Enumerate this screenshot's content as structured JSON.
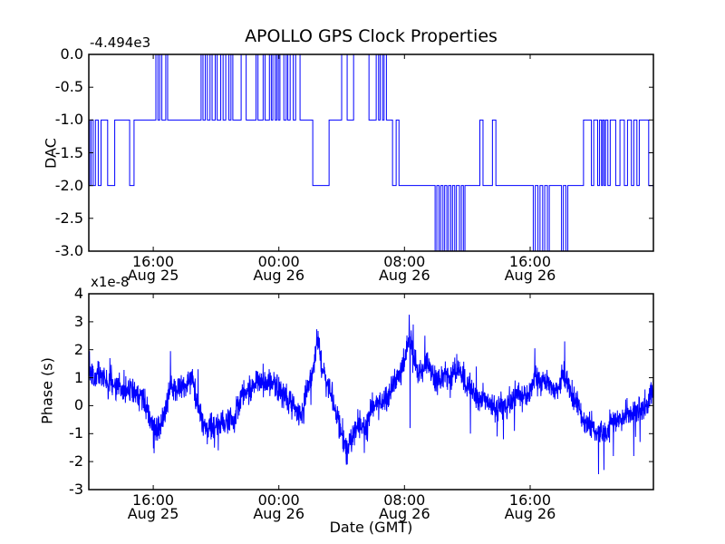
{
  "title": "APOLLO GPS Clock Properties",
  "colors": {
    "line": "#0000ff",
    "axis": "#000000",
    "background": "#ffffff",
    "text": "#000000"
  },
  "x_axis": {
    "label": "Date (GMT)",
    "range_hours": [
      11.9,
      47.85
    ],
    "ticks": [
      {
        "hour": 16,
        "time": "16:00",
        "date": "Aug 25"
      },
      {
        "hour": 24,
        "time": "00:00",
        "date": "Aug 26"
      },
      {
        "hour": 32,
        "time": "08:00",
        "date": "Aug 26"
      },
      {
        "hour": 40,
        "time": "16:00",
        "date": "Aug 26"
      }
    ]
  },
  "chart_data": [
    {
      "id": "dac",
      "type": "step",
      "ylabel": "DAC",
      "offset_label": "-4.494e3",
      "ylim": [
        -3,
        0
      ],
      "grid": false,
      "yticks": [
        {
          "value": 0.0,
          "label": "0.0"
        },
        {
          "value": -0.5,
          "label": "-0.5"
        },
        {
          "value": -1.0,
          "label": "-1.0"
        },
        {
          "value": -1.5,
          "label": "-1.5"
        },
        {
          "value": -2.0,
          "label": "-2.0"
        },
        {
          "value": -2.5,
          "label": "-2.5"
        },
        {
          "value": -3.0,
          "label": "-3.0"
        }
      ],
      "initial_value": -1,
      "transitions": [
        [
          11.95,
          -2
        ],
        [
          12.05,
          -1
        ],
        [
          12.18,
          -2
        ],
        [
          12.32,
          -1
        ],
        [
          12.5,
          -2
        ],
        [
          12.68,
          -1
        ],
        [
          13.1,
          -2
        ],
        [
          13.55,
          -1
        ],
        [
          14.5,
          -2
        ],
        [
          14.78,
          -1
        ],
        [
          16.17,
          0
        ],
        [
          16.3,
          -1
        ],
        [
          16.42,
          0
        ],
        [
          16.55,
          -1
        ],
        [
          16.8,
          0
        ],
        [
          16.92,
          -1
        ],
        [
          19.05,
          0
        ],
        [
          19.17,
          -1
        ],
        [
          19.32,
          0
        ],
        [
          19.45,
          -1
        ],
        [
          19.62,
          0
        ],
        [
          19.75,
          -1
        ],
        [
          19.95,
          0
        ],
        [
          20.07,
          -1
        ],
        [
          20.3,
          0
        ],
        [
          20.45,
          -1
        ],
        [
          20.62,
          0
        ],
        [
          20.82,
          -1
        ],
        [
          20.95,
          0
        ],
        [
          21.07,
          -1
        ],
        [
          21.6,
          0
        ],
        [
          21.92,
          -1
        ],
        [
          22.55,
          0
        ],
        [
          22.67,
          -1
        ],
        [
          23.0,
          0
        ],
        [
          23.12,
          -1
        ],
        [
          23.4,
          0
        ],
        [
          23.52,
          -1
        ],
        [
          23.62,
          0
        ],
        [
          23.77,
          -1
        ],
        [
          23.87,
          0
        ],
        [
          23.97,
          -1
        ],
        [
          24.07,
          0
        ],
        [
          24.32,
          -1
        ],
        [
          24.47,
          0
        ],
        [
          24.57,
          -1
        ],
        [
          24.72,
          0
        ],
        [
          24.92,
          -1
        ],
        [
          25.07,
          0
        ],
        [
          25.35,
          -1
        ],
        [
          26.16,
          -2
        ],
        [
          27.2,
          -1
        ],
        [
          28.0,
          0
        ],
        [
          28.35,
          -1
        ],
        [
          28.76,
          0
        ],
        [
          29.74,
          -1
        ],
        [
          30.2,
          0
        ],
        [
          30.35,
          -1
        ],
        [
          30.45,
          0
        ],
        [
          30.6,
          -1
        ],
        [
          30.7,
          0
        ],
        [
          30.85,
          -1
        ],
        [
          31.24,
          -2
        ],
        [
          31.47,
          -1
        ],
        [
          31.65,
          -2
        ],
        [
          33.95,
          -3
        ],
        [
          34.06,
          -2
        ],
        [
          34.2,
          -3
        ],
        [
          34.31,
          -2
        ],
        [
          34.45,
          -3
        ],
        [
          34.56,
          -2
        ],
        [
          34.7,
          -3
        ],
        [
          34.81,
          -2
        ],
        [
          34.95,
          -3
        ],
        [
          35.06,
          -2
        ],
        [
          35.2,
          -3
        ],
        [
          35.31,
          -2
        ],
        [
          35.5,
          -3
        ],
        [
          35.62,
          -2
        ],
        [
          35.75,
          -3
        ],
        [
          35.85,
          -2
        ],
        [
          36.8,
          -1
        ],
        [
          37.0,
          -2
        ],
        [
          37.6,
          -1
        ],
        [
          37.82,
          -2
        ],
        [
          40.2,
          -3
        ],
        [
          40.33,
          -2
        ],
        [
          40.5,
          -3
        ],
        [
          40.63,
          -2
        ],
        [
          40.8,
          -3
        ],
        [
          40.93,
          -2
        ],
        [
          41.1,
          -3
        ],
        [
          41.22,
          -2
        ],
        [
          42.0,
          -3
        ],
        [
          42.12,
          -2
        ],
        [
          42.28,
          -3
        ],
        [
          42.4,
          -2
        ],
        [
          43.4,
          -1
        ],
        [
          43.9,
          -2
        ],
        [
          44.05,
          -1
        ],
        [
          44.3,
          -2
        ],
        [
          44.42,
          -1
        ],
        [
          44.55,
          -2
        ],
        [
          44.62,
          -1
        ],
        [
          44.72,
          -2
        ],
        [
          44.8,
          -1
        ],
        [
          44.95,
          -2
        ],
        [
          45.1,
          -1
        ],
        [
          45.45,
          -2
        ],
        [
          45.72,
          -1
        ],
        [
          46.0,
          -2
        ],
        [
          46.2,
          -1
        ],
        [
          46.45,
          -2
        ],
        [
          46.6,
          -1
        ],
        [
          46.8,
          -2
        ],
        [
          46.95,
          -1
        ],
        [
          47.55,
          -2
        ]
      ]
    },
    {
      "id": "phase",
      "type": "line",
      "ylabel": "Phase (s)",
      "multiplier_label": "x1e-8",
      "ylim": [
        -3,
        4
      ],
      "grid": false,
      "yticks": [
        {
          "value": 4,
          "label": "4"
        },
        {
          "value": 3,
          "label": "3"
        },
        {
          "value": 2,
          "label": "2"
        },
        {
          "value": 1,
          "label": "1"
        },
        {
          "value": 0,
          "label": "0"
        },
        {
          "value": -1,
          "label": "-1"
        },
        {
          "value": -2,
          "label": "-2"
        },
        {
          "value": -3,
          "label": "-3"
        }
      ],
      "anchors": [
        [
          11.9,
          1.35
        ],
        [
          12.3,
          1.0
        ],
        [
          12.9,
          1.1
        ],
        [
          13.6,
          0.85
        ],
        [
          14.3,
          0.7
        ],
        [
          14.9,
          0.55
        ],
        [
          15.4,
          0.2
        ],
        [
          15.8,
          -0.5
        ],
        [
          16.05,
          -0.9
        ],
        [
          16.35,
          -0.7
        ],
        [
          16.75,
          -0.2
        ],
        [
          17.1,
          0.8
        ],
        [
          17.5,
          0.5
        ],
        [
          18.1,
          0.85
        ],
        [
          18.5,
          1.0
        ],
        [
          18.8,
          0.2
        ],
        [
          19.2,
          -0.7
        ],
        [
          19.6,
          -0.8
        ],
        [
          20.15,
          -0.9
        ],
        [
          20.7,
          -0.45
        ],
        [
          21.1,
          -0.2
        ],
        [
          21.6,
          0.3
        ],
        [
          22.1,
          0.5
        ],
        [
          22.7,
          0.9
        ],
        [
          23.4,
          1.0
        ],
        [
          23.85,
          0.8
        ],
        [
          24.4,
          0.4
        ],
        [
          25.0,
          0.0
        ],
        [
          25.4,
          -0.4
        ],
        [
          25.9,
          0.8
        ],
        [
          26.3,
          1.6
        ],
        [
          26.45,
          2.2
        ],
        [
          26.75,
          1.2
        ],
        [
          27.1,
          0.6
        ],
        [
          27.6,
          -0.4
        ],
        [
          28.1,
          -1.2
        ],
        [
          28.35,
          -1.75
        ],
        [
          28.75,
          -0.9
        ],
        [
          29.2,
          -0.5
        ],
        [
          29.6,
          -0.7
        ],
        [
          30.0,
          -0.2
        ],
        [
          30.5,
          0.1
        ],
        [
          31.0,
          0.4
        ],
        [
          31.5,
          0.9
        ],
        [
          31.9,
          1.3
        ],
        [
          32.3,
          2.5
        ],
        [
          32.6,
          1.9
        ],
        [
          32.9,
          1.2
        ],
        [
          33.3,
          1.5
        ],
        [
          33.7,
          1.3
        ],
        [
          34.1,
          1.0
        ],
        [
          34.65,
          1.1
        ],
        [
          35.1,
          0.9
        ],
        [
          35.6,
          1.0
        ],
        [
          36.0,
          0.7
        ],
        [
          36.5,
          0.4
        ],
        [
          37.0,
          0.2
        ],
        [
          37.4,
          0.1
        ],
        [
          38.0,
          0.0
        ],
        [
          38.6,
          0.1
        ],
        [
          39.15,
          0.3
        ],
        [
          39.6,
          0.2
        ],
        [
          40.0,
          0.7
        ],
        [
          40.3,
          1.3
        ],
        [
          40.65,
          1.0
        ],
        [
          41.05,
          1.2
        ],
        [
          41.45,
          0.9
        ],
        [
          41.85,
          0.8
        ],
        [
          42.2,
          1.3
        ],
        [
          42.6,
          0.4
        ],
        [
          43.0,
          0.0
        ],
        [
          43.4,
          -0.5
        ],
        [
          43.9,
          -0.8
        ],
        [
          44.35,
          -1.0
        ],
        [
          44.7,
          -1.1
        ],
        [
          45.1,
          -0.6
        ],
        [
          45.5,
          -0.6
        ],
        [
          46.0,
          -0.4
        ],
        [
          46.4,
          -0.3
        ],
        [
          46.8,
          -0.2
        ],
        [
          47.25,
          -0.1
        ],
        [
          47.65,
          0.2
        ],
        [
          47.85,
          0.4
        ]
      ],
      "spikes": [
        [
          11.95,
          1.95
        ],
        [
          13.25,
          1.7
        ],
        [
          16.05,
          -1.7
        ],
        [
          17.1,
          1.95
        ],
        [
          18.85,
          1.3
        ],
        [
          19.9,
          -1.5
        ],
        [
          20.15,
          -1.6
        ],
        [
          23.0,
          1.5
        ],
        [
          26.45,
          2.35
        ],
        [
          28.35,
          -2.1
        ],
        [
          32.3,
          3.25
        ],
        [
          32.35,
          -0.8
        ],
        [
          32.55,
          2.9
        ],
        [
          33.3,
          2.5
        ],
        [
          36.2,
          -1.0
        ],
        [
          37.9,
          -1.1
        ],
        [
          38.3,
          -1.2
        ],
        [
          39.0,
          -0.9
        ],
        [
          40.3,
          2.05
        ],
        [
          42.2,
          2.3
        ],
        [
          44.35,
          -2.45
        ],
        [
          44.7,
          -2.3
        ],
        [
          45.3,
          -1.8
        ],
        [
          46.6,
          -1.8
        ],
        [
          47.0,
          -1.3
        ]
      ],
      "noise": {
        "amplitude": 0.45,
        "seed": 20,
        "samples_per_hour": 70
      }
    }
  ]
}
